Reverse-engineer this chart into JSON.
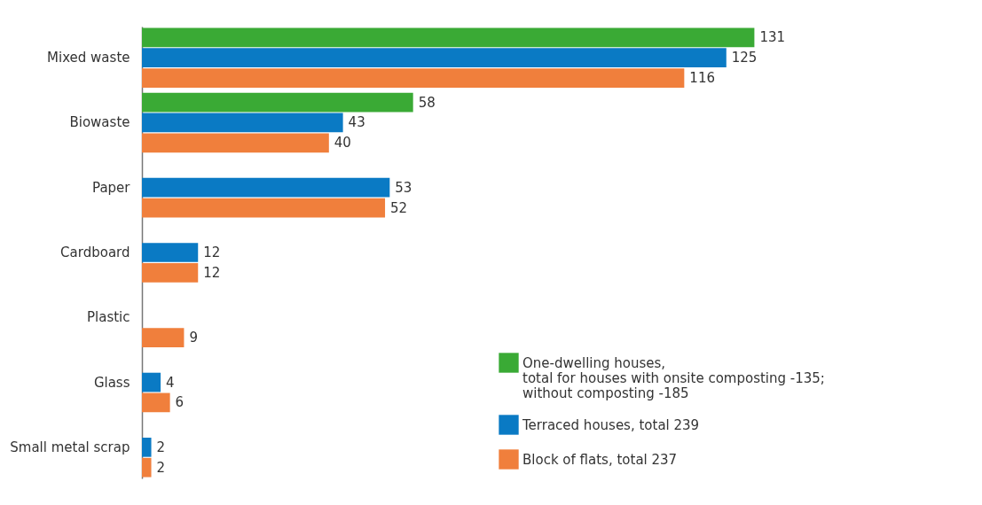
{
  "chart_data": {
    "type": "bar",
    "orientation": "horizontal",
    "categories": [
      "Mixed waste",
      "Biowaste",
      "Paper",
      "Cardboard",
      "Plastic",
      "Glass",
      "Small metal scrap"
    ],
    "series": [
      {
        "name": "One-dwelling houses,\ntotal for houses with onsite composting -135;\nwithout composting -185",
        "color": "#3aaa35",
        "values": [
          131,
          58,
          null,
          null,
          null,
          null,
          null
        ]
      },
      {
        "name": "Terraced houses, total 239",
        "color": "#0a7ac4",
        "values": [
          125,
          43,
          53,
          12,
          null,
          4,
          2
        ]
      },
      {
        "name": "Block of flats, total 237",
        "color": "#f07f3c",
        "values": [
          116,
          40,
          52,
          12,
          9,
          6,
          2
        ]
      }
    ],
    "data_labels": true,
    "legend": "bottom right",
    "grid": false
  }
}
